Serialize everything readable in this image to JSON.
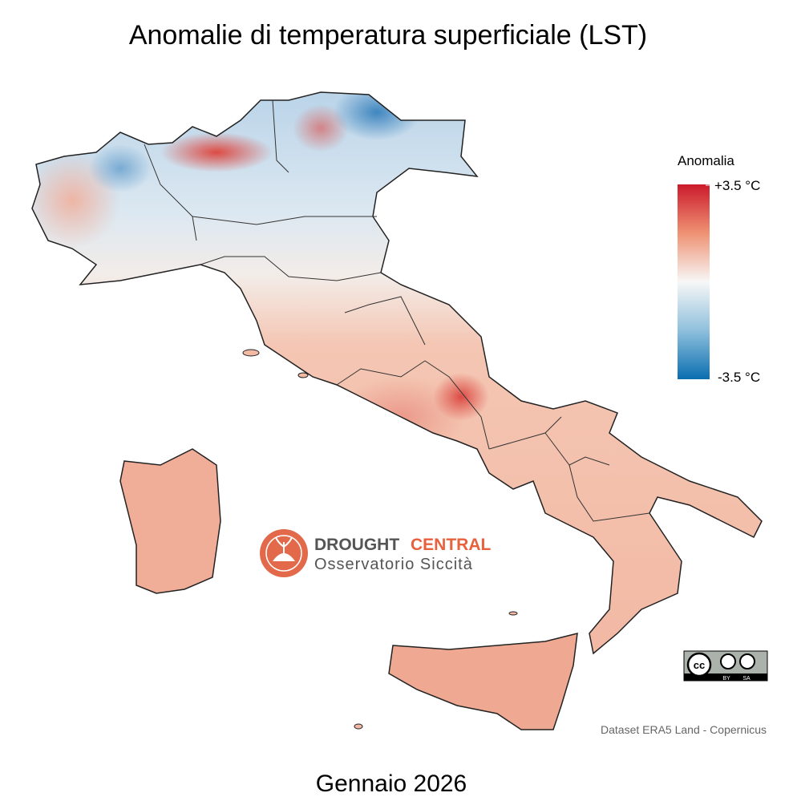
{
  "header": {
    "title": "Anomalie di temperatura superficiale (LST)"
  },
  "legend": {
    "title": "Anomalia",
    "max_label": "+3.5 °C",
    "min_label": "-3.5 °C"
  },
  "logo": {
    "name_part1": "DROUGHT",
    "name_part2": "CENTRAL",
    "subtitle": "Osservatorio Siccità"
  },
  "license": {
    "by": "BY",
    "sa": "SA"
  },
  "source": "Dataset ERA5 Land - Copernicus",
  "footer": {
    "period": "Gennaio 2026"
  }
}
